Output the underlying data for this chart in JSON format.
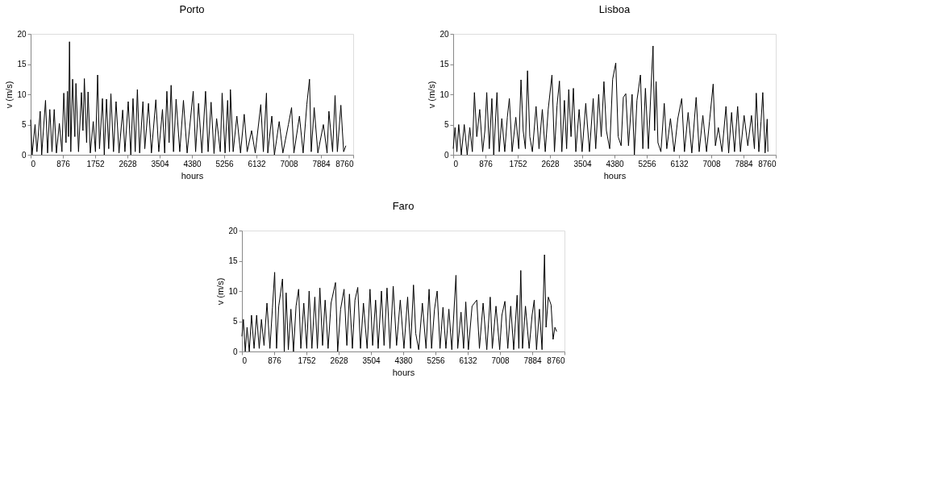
{
  "chart_data": [
    {
      "type": "line",
      "title": "Porto",
      "xlabel": "hours",
      "ylabel": "v (m/s)",
      "color": "#000000",
      "grid": false,
      "xlim": [
        0,
        8760
      ],
      "xticks": [
        0,
        876,
        1752,
        2628,
        3504,
        4380,
        5256,
        6132,
        7008,
        7884,
        8760
      ],
      "ylim": [
        0,
        20
      ],
      "yticks": [
        0,
        5,
        10,
        15,
        20
      ],
      "x": [
        0,
        40,
        120,
        170,
        260,
        300,
        404,
        460,
        520,
        580,
        640,
        700,
        780,
        850,
        900,
        960,
        1000,
        1030,
        1055,
        1090,
        1140,
        1200,
        1230,
        1300,
        1380,
        1420,
        1459,
        1520,
        1560,
        1620,
        1700,
        1760,
        1819,
        1870,
        1950,
        2000,
        2060,
        2120,
        2180,
        2250,
        2320,
        2400,
        2500,
        2560,
        2650,
        2720,
        2780,
        2840,
        2899,
        2960,
        3050,
        3100,
        3200,
        3280,
        3400,
        3480,
        3580,
        3640,
        3700,
        3760,
        3815,
        3880,
        3950,
        4050,
        4150,
        4250,
        4415,
        4480,
        4560,
        4650,
        4750,
        4820,
        4900,
        4980,
        5050,
        5150,
        5200,
        5280,
        5350,
        5400,
        5425,
        5500,
        5600,
        5700,
        5800,
        5880,
        6000,
        6100,
        6250,
        6320,
        6404,
        6440,
        6550,
        6620,
        6750,
        6850,
        7000,
        7086,
        7150,
        7300,
        7400,
        7500,
        7573,
        7620,
        7700,
        7800,
        7950,
        8050,
        8100,
        8200,
        8267,
        8330,
        8425,
        8500,
        8560
      ],
      "values": [
        5.8,
        0,
        5,
        0.5,
        7.2,
        0,
        9,
        0.3,
        7.5,
        0.5,
        7.5,
        0.3,
        5.2,
        0.5,
        10.2,
        2,
        10.5,
        3,
        18.7,
        0.5,
        12.5,
        3,
        11.8,
        0.5,
        10.3,
        4,
        12.6,
        2,
        10.4,
        0.3,
        5.5,
        0.5,
        13.2,
        1,
        9.3,
        0,
        9.2,
        1,
        10.1,
        0.5,
        8.8,
        0.3,
        7.4,
        0.5,
        8.8,
        0,
        9.3,
        0.5,
        10.8,
        0.3,
        8.8,
        1,
        8.5,
        0.3,
        9.1,
        0.5,
        7.5,
        0.3,
        10.5,
        2,
        11.5,
        0.5,
        9.2,
        0.5,
        9,
        0.3,
        10.5,
        0.5,
        8.5,
        0.3,
        10.5,
        0.5,
        8.7,
        0.2,
        6,
        0.5,
        10.2,
        0.3,
        9,
        0.5,
        10.8,
        0.5,
        6.4,
        0.3,
        6.7,
        0.5,
        4,
        0.3,
        8.3,
        0.5,
        10.2,
        0.3,
        6.4,
        0,
        5.5,
        0.3,
        5,
        7.8,
        0.3,
        6.4,
        0.3,
        8.3,
        12.5,
        0.5,
        7.8,
        0.3,
        5,
        0.3,
        7.2,
        0.5,
        9.8,
        0.5,
        8.2,
        0.5,
        1.5
      ]
    },
    {
      "type": "line",
      "title": "Lisboa",
      "xlabel": "hours",
      "ylabel": "v (m/s)",
      "color": "#000000",
      "grid": false,
      "xlim": [
        0,
        8760
      ],
      "xticks": [
        0,
        876,
        1752,
        2628,
        3504,
        4380,
        5256,
        6132,
        7008,
        7884,
        8760
      ],
      "ylim": [
        0,
        20
      ],
      "yticks": [
        0,
        5,
        10,
        15,
        20
      ],
      "x": [
        0,
        50,
        100,
        150,
        220,
        300,
        380,
        450,
        520,
        576,
        640,
        720,
        800,
        860,
        911,
        980,
        1050,
        1100,
        1189,
        1250,
        1320,
        1400,
        1470,
        1525,
        1600,
        1700,
        1780,
        1841,
        1900,
        1960,
        2018,
        2080,
        2150,
        2250,
        2330,
        2420,
        2500,
        2580,
        2682,
        2750,
        2820,
        2885,
        2950,
        3020,
        3080,
        3138,
        3200,
        3264,
        3330,
        3420,
        3500,
        3600,
        3700,
        3802,
        3870,
        3950,
        4020,
        4093,
        4160,
        4250,
        4330,
        4415,
        4480,
        4560,
        4620,
        4687,
        4760,
        4858,
        4920,
        4990,
        5085,
        5150,
        5220,
        5300,
        5380,
        5427,
        5470,
        5510,
        5560,
        5640,
        5731,
        5800,
        5900,
        6000,
        6100,
        6206,
        6280,
        6380,
        6480,
        6598,
        6680,
        6780,
        6880,
        6960,
        7060,
        7120,
        7200,
        7300,
        7408,
        7480,
        7560,
        7640,
        7724,
        7800,
        7900,
        8000,
        8100,
        8180,
        8230,
        8300,
        8360,
        8407,
        8470,
        8527,
        8546
      ],
      "values": [
        1,
        4.5,
        0.5,
        5,
        0,
        5,
        0,
        4.5,
        0.5,
        10.3,
        3,
        7.5,
        0.5,
        4,
        10.3,
        1,
        9.3,
        0,
        10.3,
        0.5,
        6,
        0.5,
        6.2,
        9.3,
        0.5,
        6.2,
        1,
        12.4,
        4,
        1,
        13.9,
        3,
        0.5,
        8,
        1,
        7.5,
        0.5,
        7.5,
        13.2,
        0.5,
        8.2,
        12.2,
        0.5,
        9,
        1,
        10.8,
        3,
        11,
        0.5,
        7.5,
        0.5,
        8.5,
        0.5,
        9.3,
        1,
        10,
        3,
        12.1,
        4,
        1,
        12.5,
        15.2,
        3,
        1.5,
        9.5,
        10.1,
        1.5,
        10,
        0,
        9,
        13.2,
        1,
        11,
        1,
        12,
        18,
        4,
        12.1,
        2,
        0.5,
        8.5,
        1,
        6,
        0.5,
        6,
        9.3,
        0.5,
        7,
        0.3,
        9.5,
        0.5,
        6.5,
        0.5,
        5.5,
        11.7,
        1.5,
        4.5,
        0.5,
        8,
        0.3,
        7,
        0.5,
        8,
        0.5,
        6.5,
        1.5,
        6.5,
        1,
        10.2,
        0.5,
        5.5,
        10.3,
        0.3,
        5.9,
        0.5
      ]
    },
    {
      "type": "line",
      "title": "Faro",
      "xlabel": "hours",
      "ylabel": "v (m/s)",
      "color": "#000000",
      "grid": false,
      "xlim": [
        0,
        8760
      ],
      "xticks": [
        0,
        876,
        1752,
        2628,
        3504,
        4380,
        5256,
        6132,
        7008,
        7884,
        8760
      ],
      "ylim": [
        0,
        20
      ],
      "yticks": [
        0,
        5,
        10,
        15,
        20
      ],
      "x": [
        0,
        40,
        90,
        140,
        200,
        260,
        330,
        400,
        470,
        530,
        600,
        680,
        760,
        830,
        889,
        940,
        1000,
        1102,
        1150,
        1201,
        1260,
        1330,
        1400,
        1470,
        1540,
        1600,
        1680,
        1760,
        1825,
        1900,
        1980,
        2050,
        2117,
        2190,
        2260,
        2340,
        2420,
        2541,
        2600,
        2680,
        2774,
        2850,
        2920,
        3000,
        3070,
        3146,
        3220,
        3300,
        3400,
        3478,
        3550,
        3630,
        3700,
        3789,
        3860,
        3940,
        4020,
        4108,
        4200,
        4300,
        4400,
        4500,
        4580,
        4659,
        4720,
        4800,
        4900,
        5000,
        5083,
        5150,
        5230,
        5302,
        5380,
        5460,
        5540,
        5620,
        5700,
        5813,
        5860,
        5950,
        6020,
        6079,
        6150,
        6250,
        6378,
        6450,
        6550,
        6650,
        6743,
        6800,
        6900,
        7000,
        7060,
        7142,
        7220,
        7300,
        7380,
        7474,
        7520,
        7573,
        7620,
        7700,
        7800,
        7880,
        7938,
        8000,
        8080,
        8150,
        8217,
        8260,
        8320,
        8396,
        8450,
        8500,
        8548
      ],
      "values": [
        2.5,
        5.3,
        0,
        4,
        0,
        6,
        0.5,
        6,
        0.5,
        5.3,
        1,
        8,
        0.5,
        7.3,
        13.1,
        0.5,
        7.5,
        12,
        0,
        9.7,
        0.3,
        7,
        0,
        7.5,
        10.3,
        0.5,
        8,
        0.5,
        10,
        0.5,
        9,
        0.5,
        10.5,
        1,
        8.5,
        0.5,
        8,
        11.4,
        0,
        7,
        10.3,
        1,
        9.5,
        0.5,
        8.5,
        10.6,
        0.5,
        8,
        0.5,
        10.3,
        1,
        8.5,
        0.5,
        10,
        1,
        10.5,
        0.5,
        10.8,
        1,
        8.5,
        0.5,
        9,
        0.5,
        11,
        3,
        0.3,
        8,
        0.5,
        10.3,
        0.5,
        7,
        10,
        0.5,
        7.3,
        0.5,
        7,
        0.3,
        12.6,
        0.5,
        6.5,
        0.5,
        8.2,
        0.3,
        7.5,
        8.5,
        0.5,
        8,
        0.3,
        9,
        0.5,
        7.5,
        0.3,
        6,
        8.3,
        0.5,
        7.5,
        0.3,
        9.3,
        0.5,
        13.4,
        0.5,
        7.5,
        0.5,
        6,
        8.5,
        0.3,
        7,
        0.3,
        16,
        4,
        9,
        7.7,
        2,
        4,
        3.3
      ]
    }
  ]
}
